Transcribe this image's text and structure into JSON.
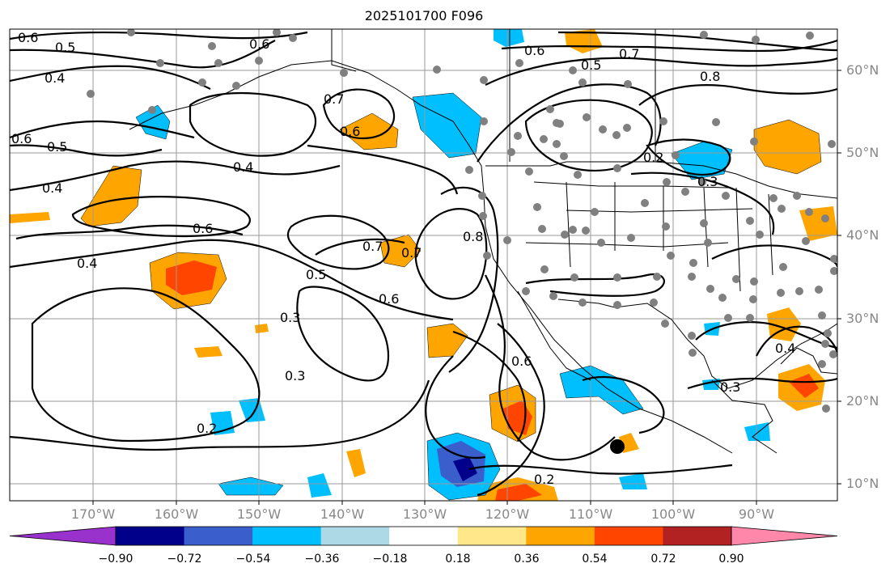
{
  "title": "2025101700 F096",
  "map": {
    "lon_labels": [
      "170°W",
      "160°W",
      "150°W",
      "140°W",
      "130°W",
      "120°W",
      "110°W",
      "100°W",
      "90°W"
    ],
    "lat_labels": [
      "60°N",
      "50°N",
      "40°N",
      "30°N",
      "20°N",
      "10°N"
    ],
    "contour_labels": [
      "0.6",
      "0.5",
      "0.4",
      "0.6",
      "0.5",
      "0.4",
      "0.4",
      "0.6",
      "0.4",
      "0.7",
      "0.6",
      "0.5",
      "0.3",
      "0.3",
      "0.2",
      "0.7",
      "0.7",
      "0.8",
      "0.6",
      "0.6",
      "0.6",
      "0.5",
      "0.7",
      "0.8",
      "0.2",
      "0.3",
      "0.2",
      "0.3",
      "0.4"
    ]
  },
  "colorbar": {
    "ticks": [
      "−0.90",
      "−0.72",
      "−0.54",
      "−0.36",
      "−0.18",
      "0.18",
      "0.36",
      "0.54",
      "0.72",
      "0.90"
    ],
    "colors": [
      "#9932CC",
      "#00008B",
      "#3A5FCD",
      "#00BFFF",
      "#ADD8E6",
      "#FFFFFF",
      "#FFE78A",
      "#FFA500",
      "#FF4500",
      "#B22222",
      "#FF88AA"
    ]
  }
}
